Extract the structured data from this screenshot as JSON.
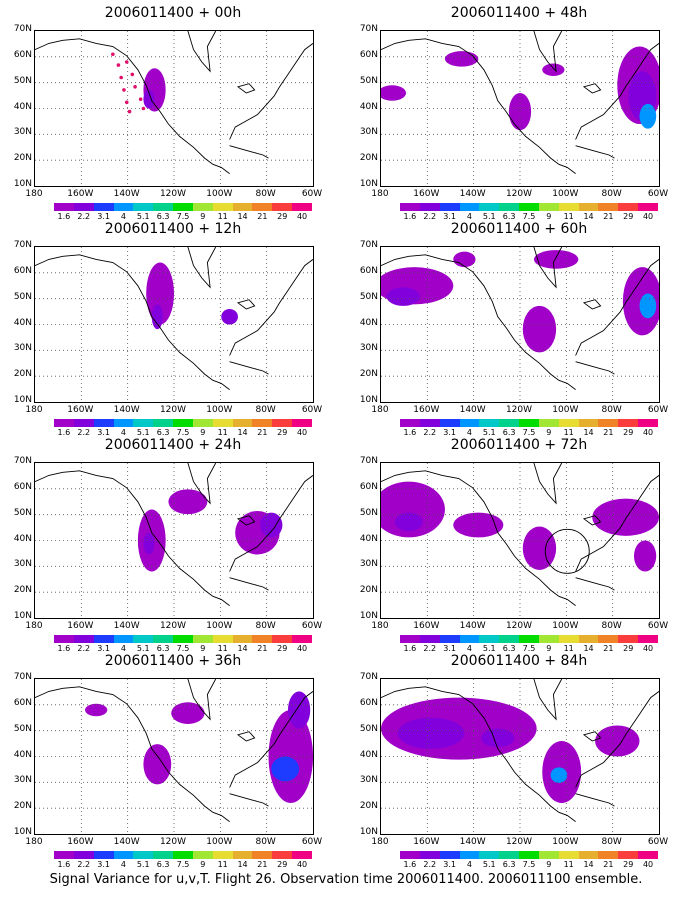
{
  "panels": [
    {
      "title": "2006011400 + 00h"
    },
    {
      "title": "2006011400 + 48h"
    },
    {
      "title": "2006011400 + 12h"
    },
    {
      "title": "2006011400 + 60h"
    },
    {
      "title": "2006011400 + 24h"
    },
    {
      "title": "2006011400 + 72h"
    },
    {
      "title": "2006011400 + 36h"
    },
    {
      "title": "2006011400 + 84h"
    }
  ],
  "y_axis_labels": [
    "70N",
    "60N",
    "50N",
    "40N",
    "30N",
    "20N",
    "10N"
  ],
  "x_axis_labels": [
    "180",
    "160W",
    "140W",
    "120W",
    "100W",
    "80W",
    "60W"
  ],
  "colorbar": {
    "labels": [
      "1.6",
      "2.2",
      "3.1",
      "4",
      "5.1",
      "6.3",
      "7.5",
      "9",
      "11",
      "14",
      "21",
      "29",
      "40"
    ],
    "colors": [
      "#a000c8",
      "#8200dc",
      "#1e3cff",
      "#0096ff",
      "#00c8c8",
      "#00d28c",
      "#00dc00",
      "#a0e632",
      "#e6dc32",
      "#e6af2d",
      "#f08228",
      "#fa3c3c",
      "#f00082"
    ]
  },
  "footer": "Signal Variance for u,v,T. Flight 26. Observation time 2006011400. 2006011100 ensemble."
}
